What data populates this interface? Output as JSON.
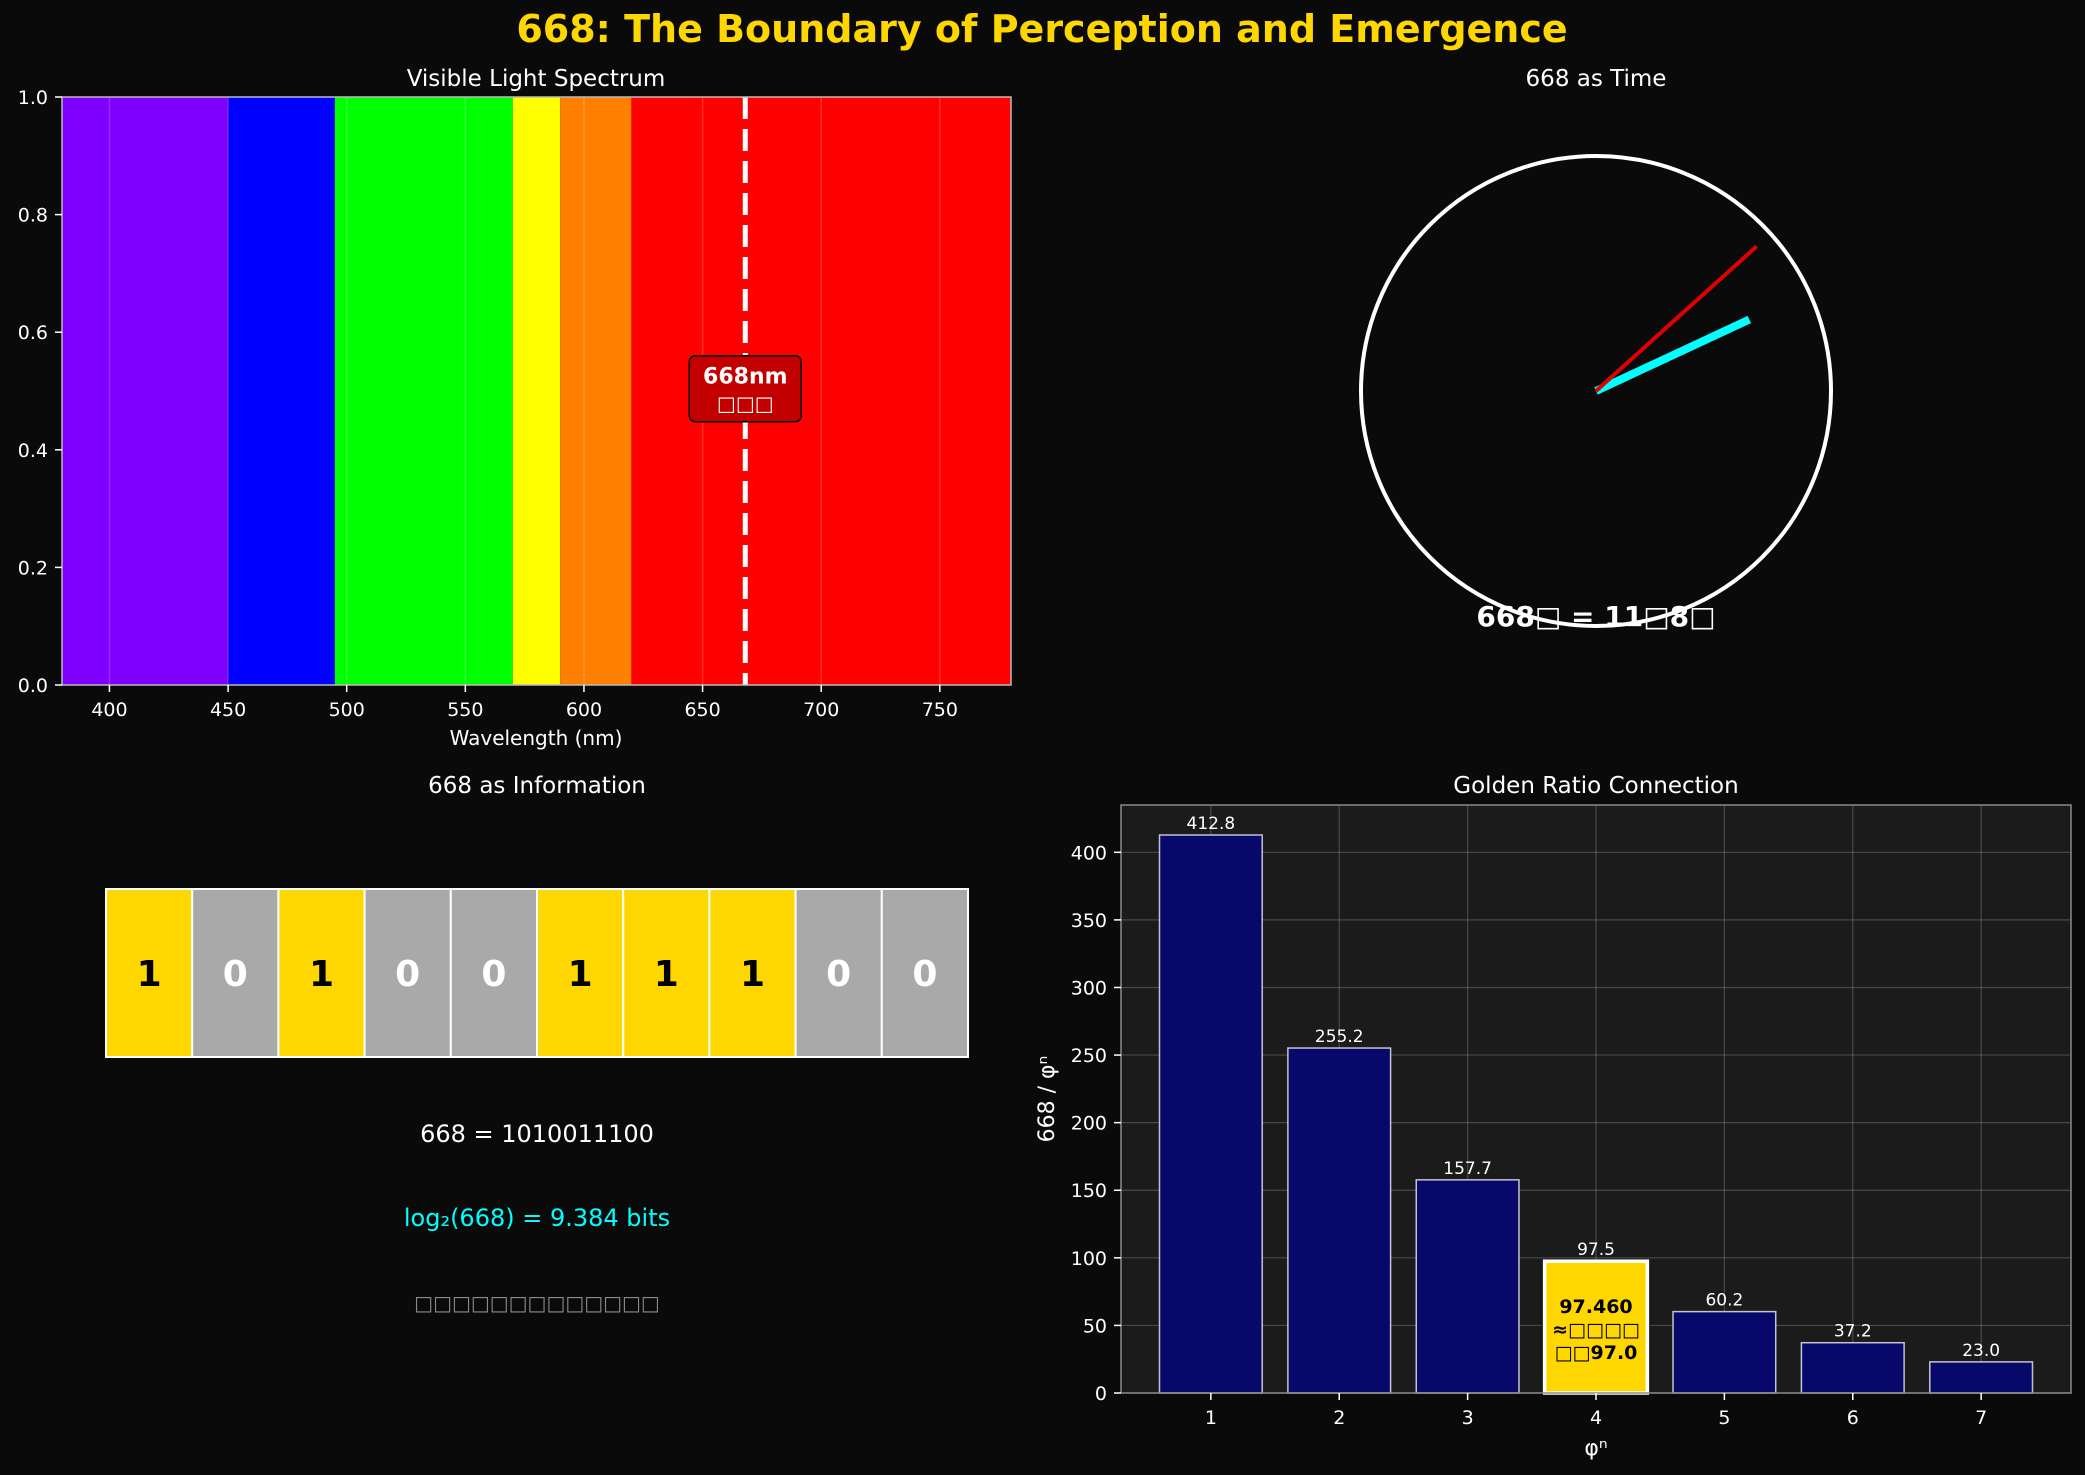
{
  "figure": {
    "suptitle": "668: The Boundary of Perception and Emergence",
    "colors": {
      "background": "#0a0a0a",
      "gold": "#FFD700",
      "text": "#ffffff",
      "cyan": "#00FFFF",
      "red": "#FF0000",
      "gray": "#A9A9A9",
      "navy": "#08086b"
    }
  },
  "chart_data": [
    {
      "type": "bar",
      "panel": "spectrum",
      "title": "Visible Light Spectrum",
      "xlabel": "Wavelength (nm)",
      "ylabel": "",
      "xlim": [
        380,
        780
      ],
      "ylim": [
        0,
        1
      ],
      "grid": "vertical",
      "x_ticks": [
        400,
        450,
        500,
        550,
        600,
        650,
        700,
        750
      ],
      "y_ticks": [
        "0.0",
        "0.2",
        "0.4",
        "0.6",
        "0.8",
        "1.0"
      ],
      "bands": [
        {
          "start": 380,
          "end": 450,
          "color": "#8000FF"
        },
        {
          "start": 450,
          "end": 495,
          "color": "#0000FF"
        },
        {
          "start": 495,
          "end": 570,
          "color": "#00FF00"
        },
        {
          "start": 570,
          "end": 590,
          "color": "#FFFF00"
        },
        {
          "start": 590,
          "end": 620,
          "color": "#FF8000"
        },
        {
          "start": 620,
          "end": 780,
          "color": "#FF0000"
        }
      ],
      "marker": {
        "x": 668,
        "label": "668nm",
        "sublabel": "□□□"
      }
    },
    {
      "type": "other",
      "panel": "clock",
      "title": "668 as Time",
      "hands": [
        {
          "name": "hour",
          "angle_deg": 65,
          "length": 0.72,
          "color": "#00FFFF",
          "role": "thick"
        },
        {
          "name": "minute",
          "angle_deg": 48,
          "length": 0.92,
          "color": "#E00000",
          "role": "thin"
        }
      ],
      "caption": "668□ = 11□8□"
    },
    {
      "type": "table",
      "panel": "binary",
      "title": "668 as Information",
      "bits": [
        "1",
        "0",
        "1",
        "0",
        "0",
        "1",
        "1",
        "1",
        "0",
        "0"
      ],
      "one_color": "#FFD700",
      "zero_color": "#A9A9A9",
      "binary_text": "668 = 1010011100",
      "log_text": "log₂(668) = 9.384 bits",
      "note_text": "□□□□□□□□□□□□□"
    },
    {
      "type": "bar",
      "panel": "golden",
      "title": "Golden Ratio Connection",
      "xlabel": "φⁿ",
      "ylabel": "668 / φⁿ",
      "categories": [
        "1",
        "2",
        "3",
        "4",
        "5",
        "6",
        "7"
      ],
      "values": [
        412.8,
        255.2,
        157.7,
        97.5,
        60.2,
        37.2,
        23.0
      ],
      "value_labels": [
        "412.8",
        "255.2",
        "157.7",
        "97.5",
        "60.2",
        "37.2",
        "23.0"
      ],
      "ylim": [
        0,
        435
      ],
      "y_ticks": [
        0,
        50,
        100,
        150,
        200,
        250,
        300,
        350,
        400
      ],
      "grid": true,
      "highlight_index": 3,
      "highlight_text": [
        "97.460",
        "≈□□□□",
        "□□97.0"
      ]
    }
  ]
}
